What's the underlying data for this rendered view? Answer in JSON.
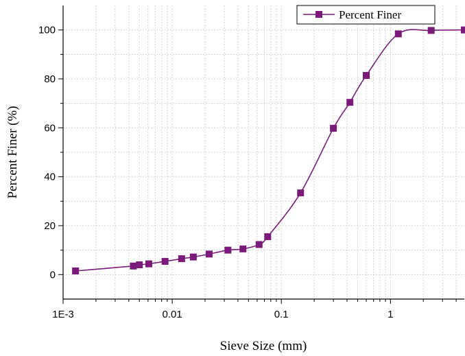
{
  "chart_data": {
    "type": "line",
    "title": "",
    "xlabel": "Sieve Size (mm)",
    "ylabel": "Percent Finer (%)",
    "x_scale": "log",
    "xlim": [
      0.001,
      4.75
    ],
    "ylim": [
      -10,
      110
    ],
    "x_ticks": [
      {
        "value": 0.001,
        "label": "1E-3"
      },
      {
        "value": 0.01,
        "label": "0.01"
      },
      {
        "value": 0.1,
        "label": "0.1"
      },
      {
        "value": 1,
        "label": "1"
      }
    ],
    "y_ticks": [
      {
        "value": 0,
        "label": "0"
      },
      {
        "value": 20,
        "label": "20"
      },
      {
        "value": 40,
        "label": "40"
      },
      {
        "value": 60,
        "label": "60"
      },
      {
        "value": 80,
        "label": "80"
      },
      {
        "value": 100,
        "label": "100"
      }
    ],
    "grid": true,
    "legend": {
      "position": "top-right",
      "entries": [
        "Percent Finer"
      ]
    },
    "series_color": "#7b1a7b",
    "series": [
      {
        "name": "Percent Finer",
        "marker": "square",
        "x": [
          0.0013,
          0.0044,
          0.005,
          0.0061,
          0.0086,
          0.0122,
          0.0156,
          0.0218,
          0.0324,
          0.0445,
          0.0625,
          0.075,
          0.15,
          0.3,
          0.425,
          0.6,
          1.18,
          2.36,
          4.75
        ],
        "y": [
          1.5,
          3.5,
          4.0,
          4.4,
          5.4,
          6.5,
          7.2,
          8.4,
          10.0,
          10.5,
          12.3,
          15.5,
          33.4,
          59.8,
          70.4,
          81.4,
          98.4,
          99.8,
          100.0
        ]
      }
    ]
  }
}
